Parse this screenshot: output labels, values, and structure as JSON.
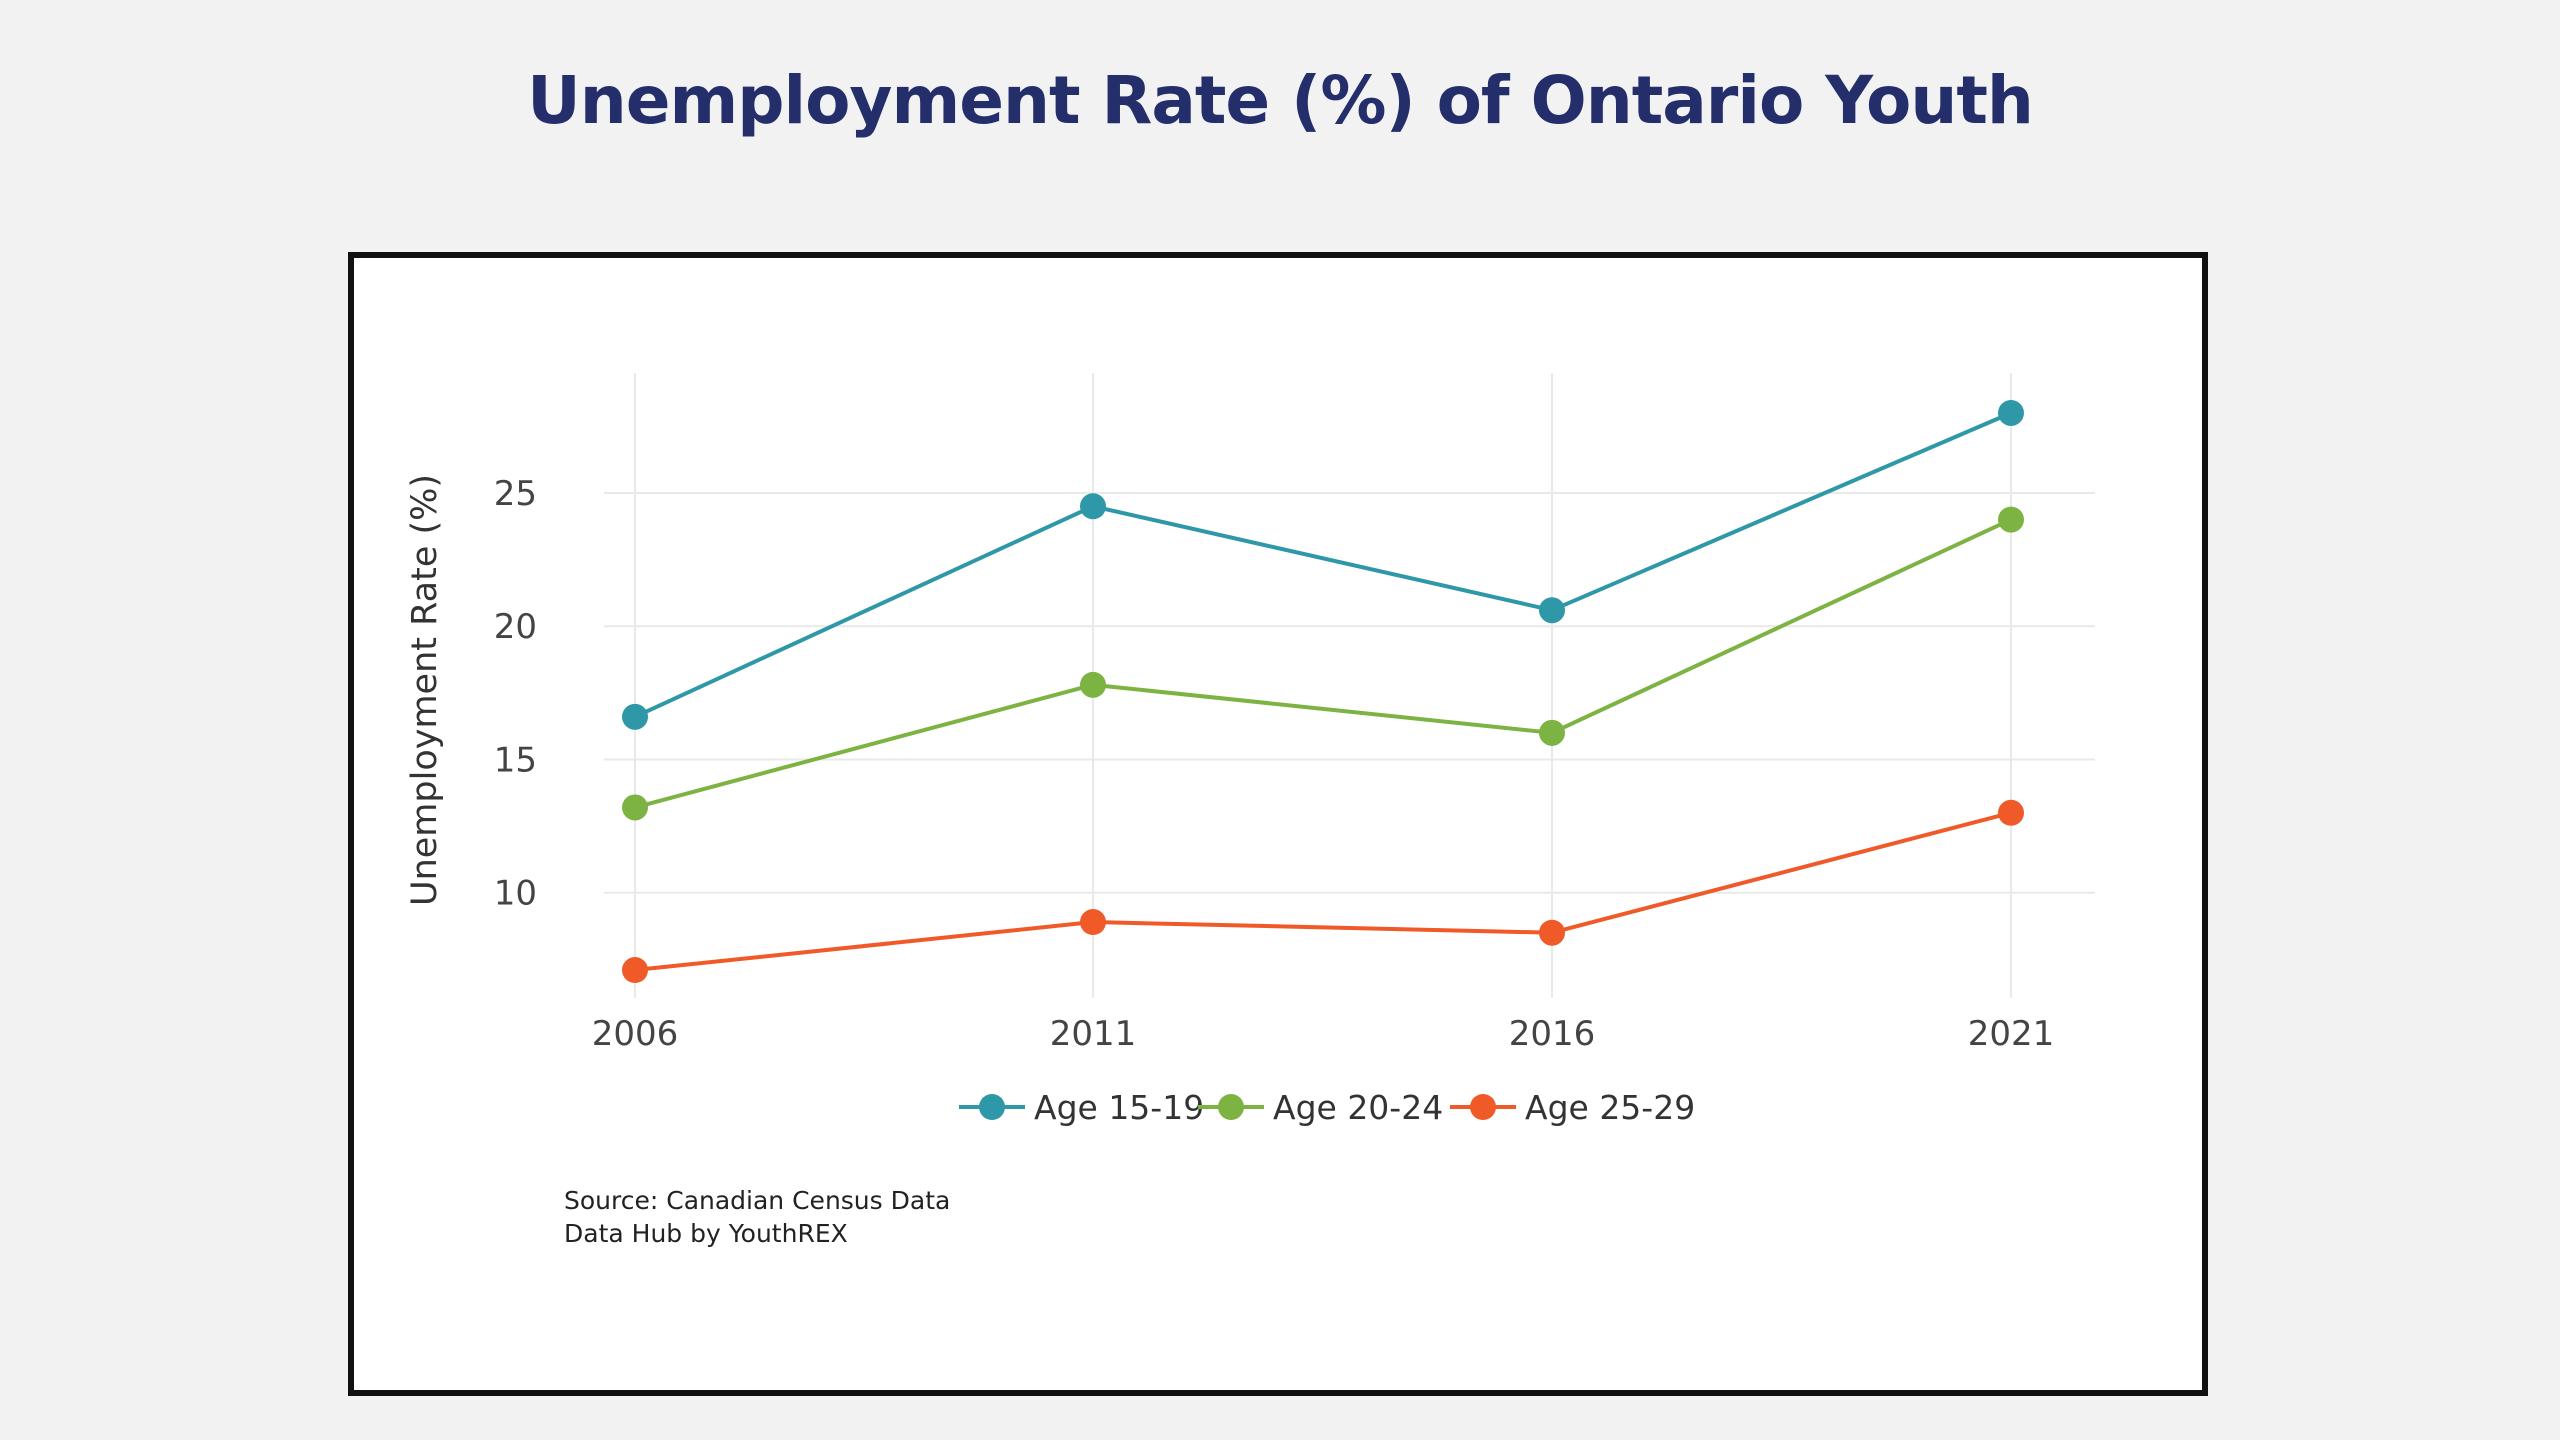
{
  "page": {
    "title": "Unemployment Rate (%) of Ontario Youth"
  },
  "source": {
    "line1": "Source: Canadian Census Data",
    "line2": "Data Hub by YouthREX"
  },
  "colors": {
    "title": "#232e6b",
    "age_15_19": "#2e98a8",
    "age_20_24": "#7cb342",
    "age_25_29": "#f05a28",
    "grid": "#e9e9e9"
  },
  "chart_data": {
    "type": "line",
    "title": "",
    "xlabel": "",
    "ylabel": "Unemployment Rate (%)",
    "categories": [
      "2006",
      "2011",
      "2016",
      "2021"
    ],
    "ylim": [
      5.3,
      29.5
    ],
    "yticks": [
      10,
      15,
      20,
      25
    ],
    "grid": true,
    "legend_position": "bottom-center",
    "series": [
      {
        "name": "Age 15-19",
        "color": "#2e98a8",
        "values": [
          16.6,
          24.5,
          20.6,
          28.0
        ]
      },
      {
        "name": "Age 20-24",
        "color": "#7cb342",
        "values": [
          13.2,
          17.8,
          16.0,
          24.0
        ]
      },
      {
        "name": "Age 25-29",
        "color": "#f05a28",
        "values": [
          7.1,
          8.9,
          8.5,
          13.0
        ]
      }
    ]
  }
}
